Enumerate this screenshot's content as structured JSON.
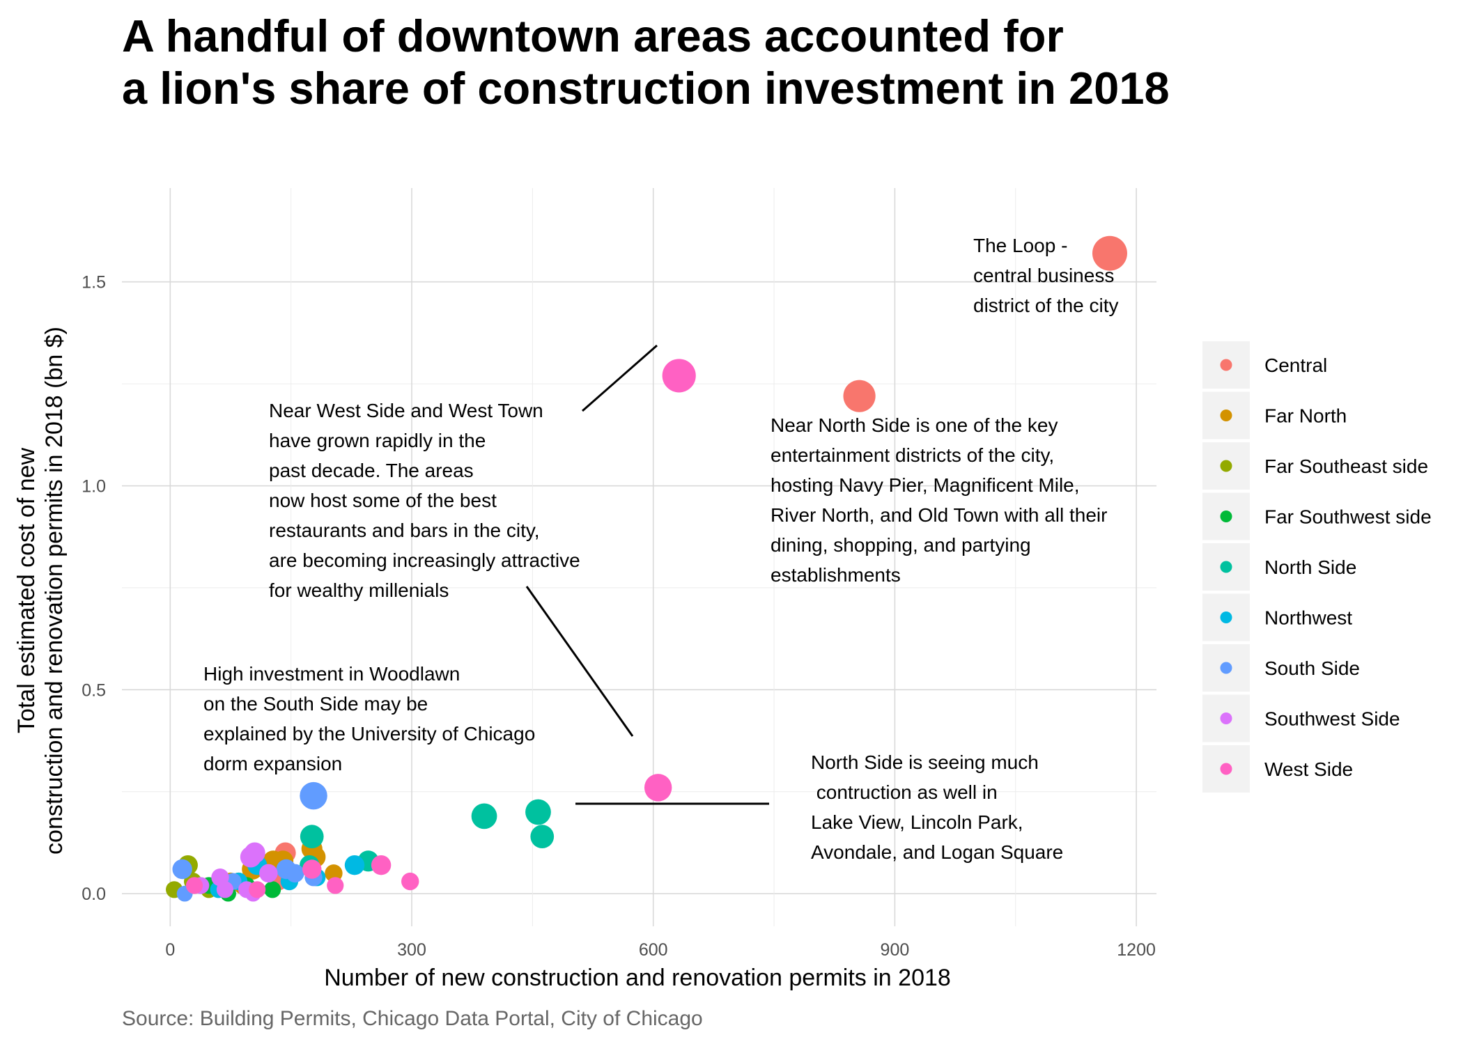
{
  "title_lines": [
    "A handful of downtown areas accounted for",
    "a lion's share of construction investment in 2018"
  ],
  "caption": "Source: Building Permits, Chicago Data Portal, City of Chicago",
  "chart_data": {
    "type": "scatter",
    "xlabel": "Number of new construction and renovation permits in 2018",
    "ylabel_lines": [
      "Total estimated cost of new",
      "construction and renovation permits in 2018 (bn $)"
    ],
    "xlim": [
      -60,
      1225
    ],
    "ylim": [
      -0.08,
      1.73
    ],
    "xticks": [
      0,
      300,
      600,
      900,
      1200
    ],
    "xtick_labels": [
      "0",
      "300",
      "600",
      "900",
      "1200"
    ],
    "yticks": [
      0.0,
      0.5,
      1.0,
      1.5
    ],
    "ytick_labels": [
      "0.0",
      "0.5",
      "1.0",
      "1.5"
    ],
    "grid": true,
    "legend_position": "right",
    "series": [
      {
        "name": "Central",
        "color": "#F8766D",
        "points": [
          [
            1167,
            1.57,
            0.05
          ],
          [
            856,
            1.22,
            0.04
          ],
          [
            143,
            0.1,
            0.01
          ],
          [
            135,
            0.03,
            0.005
          ]
        ]
      },
      {
        "name": "Far North",
        "color": "#D39200",
        "points": [
          [
            176,
            0.11,
            0.01
          ],
          [
            180,
            0.09,
            0.01
          ],
          [
            128,
            0.08,
            0.01
          ],
          [
            140,
            0.08,
            0.01
          ],
          [
            102,
            0.06,
            0.01
          ],
          [
            203,
            0.05,
            0.005
          ],
          [
            75,
            0.03,
            0.005
          ],
          [
            90,
            0.02,
            0.005
          ]
        ]
      },
      {
        "name": "Far Southeast side",
        "color": "#93AA00",
        "points": [
          [
            22,
            0.07,
            0.008
          ],
          [
            28,
            0.03,
            0.005
          ],
          [
            5,
            0.01,
            0.004
          ],
          [
            48,
            0.01,
            0.004
          ],
          [
            58,
            0.02,
            0.004
          ],
          [
            85,
            0.03,
            0.005
          ],
          [
            100,
            0.01,
            0.004
          ]
        ]
      },
      {
        "name": "Far Southwest side",
        "color": "#00BA38",
        "points": [
          [
            65,
            0.03,
            0.004
          ],
          [
            72,
            0.0,
            0.003
          ],
          [
            127,
            0.01,
            0.004
          ],
          [
            48,
            0.02,
            0.004
          ],
          [
            95,
            0.02,
            0.004
          ]
        ]
      },
      {
        "name": "North Side",
        "color": "#00C19F",
        "points": [
          [
            390,
            0.19,
            0.02
          ],
          [
            457,
            0.2,
            0.02
          ],
          [
            462,
            0.14,
            0.015
          ],
          [
            176,
            0.14,
            0.015
          ],
          [
            246,
            0.08,
            0.01
          ],
          [
            173,
            0.07,
            0.008
          ]
        ]
      },
      {
        "name": "Northwest",
        "color": "#00B9E3",
        "points": [
          [
            229,
            0.07,
            0.008
          ],
          [
            108,
            0.07,
            0.008
          ],
          [
            148,
            0.03,
            0.005
          ],
          [
            60,
            0.01,
            0.004
          ],
          [
            85,
            0.03,
            0.005
          ],
          [
            182,
            0.04,
            0.005
          ]
        ]
      },
      {
        "name": "South Side",
        "color": "#619CFF",
        "points": [
          [
            178,
            0.24,
            0.025
          ],
          [
            15,
            0.06,
            0.008
          ],
          [
            144,
            0.06,
            0.008
          ],
          [
            155,
            0.05,
            0.006
          ],
          [
            178,
            0.04,
            0.005
          ],
          [
            78,
            0.03,
            0.004
          ],
          [
            18,
            0.0,
            0.003
          ]
        ]
      },
      {
        "name": "Southwest Side",
        "color": "#DB72FB",
        "points": [
          [
            105,
            0.1,
            0.01
          ],
          [
            100,
            0.09,
            0.01
          ],
          [
            122,
            0.05,
            0.006
          ],
          [
            62,
            0.04,
            0.005
          ],
          [
            38,
            0.02,
            0.004
          ],
          [
            95,
            0.01,
            0.004
          ],
          [
            68,
            0.01,
            0.004
          ],
          [
            103,
            0.0,
            0.003
          ]
        ]
      },
      {
        "name": "West Side",
        "color": "#FF61C3",
        "points": [
          [
            632,
            1.27,
            0.045
          ],
          [
            606,
            0.26,
            0.025
          ],
          [
            262,
            0.07,
            0.008
          ],
          [
            176,
            0.06,
            0.007
          ],
          [
            298,
            0.03,
            0.005
          ],
          [
            205,
            0.02,
            0.004
          ],
          [
            108,
            0.01,
            0.004
          ],
          [
            30,
            0.02,
            0.004
          ]
        ]
      }
    ],
    "annotations": [
      {
        "lines": [
          "The Loop -",
          "central business",
          "district of the city"
        ]
      },
      {
        "lines": [
          "Near North Side is one of the key",
          "entertainment districts of the city,",
          "hosting Navy Pier, Magnificent Mile,",
          "River North, and Old Town with all their",
          "dining, shopping, and partying",
          "establishments"
        ]
      },
      {
        "lines": [
          "Near West Side and West Town",
          "have grown rapidly in the",
          "past decade. The areas",
          "now host some of the best",
          "restaurants and bars in the city,",
          "are becoming increasingly attractive",
          "for wealthy millenials"
        ]
      },
      {
        "lines": [
          "High investment in Woodlawn",
          "on the South Side may be",
          "explained by the University of Chicago",
          "dorm expansion"
        ]
      },
      {
        "lines": [
          "North Side is seeing much",
          " contruction as well in",
          "Lake View, Lincoln Park,",
          "Avondale, and Logan Square"
        ]
      }
    ]
  }
}
